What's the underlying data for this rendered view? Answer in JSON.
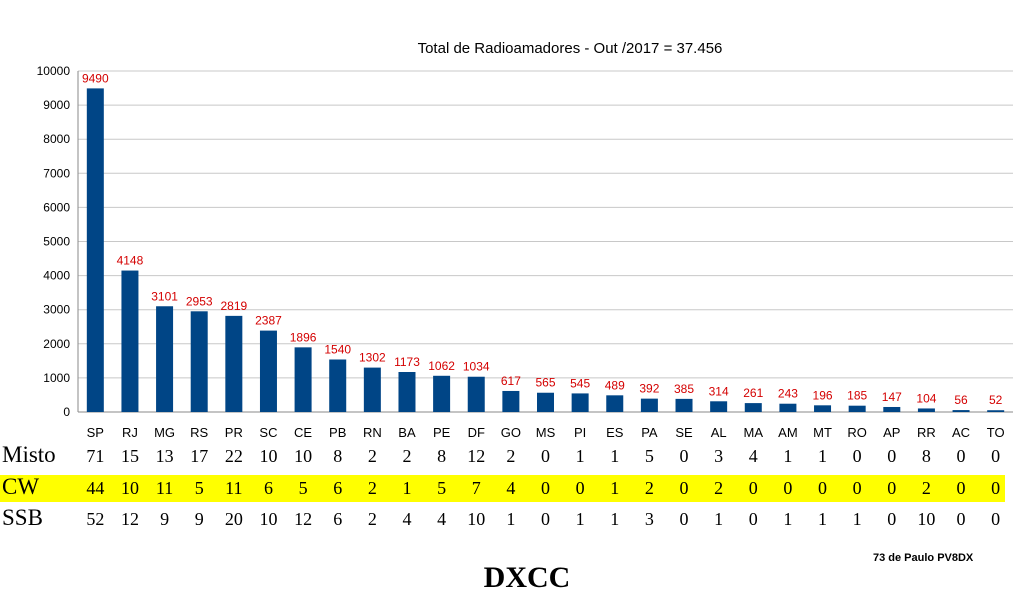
{
  "chart_data": {
    "type": "bar",
    "title": "Total de Radioamadores - Out /2017 = 37.456",
    "categories": [
      "SP",
      "RJ",
      "MG",
      "RS",
      "PR",
      "SC",
      "CE",
      "PB",
      "RN",
      "BA",
      "PE",
      "DF",
      "GO",
      "MS",
      "PI",
      "ES",
      "PA",
      "SE",
      "AL",
      "MA",
      "AM",
      "MT",
      "RO",
      "AP",
      "RR",
      "AC",
      "TO"
    ],
    "values": [
      9490,
      4148,
      3101,
      2953,
      2819,
      2387,
      1896,
      1540,
      1302,
      1173,
      1062,
      1034,
      617,
      565,
      545,
      489,
      392,
      385,
      314,
      261,
      243,
      196,
      185,
      147,
      104,
      56,
      52
    ],
    "ylim": [
      0,
      10000
    ],
    "yticks": [
      0,
      1000,
      2000,
      3000,
      4000,
      5000,
      6000,
      7000,
      8000,
      9000,
      10000
    ],
    "grid": true,
    "bar_color": "#004586",
    "label_color": "#d40000"
  },
  "table": {
    "rows": [
      {
        "label": "Misto",
        "values": [
          71,
          15,
          13,
          17,
          22,
          10,
          10,
          8,
          2,
          2,
          8,
          12,
          2,
          0,
          1,
          1,
          5,
          0,
          3,
          4,
          1,
          1,
          0,
          0,
          8,
          0,
          0
        ],
        "highlight": false
      },
      {
        "label": "CW",
        "values": [
          44,
          10,
          11,
          5,
          11,
          6,
          5,
          6,
          2,
          1,
          5,
          7,
          4,
          0,
          0,
          1,
          2,
          0,
          2,
          0,
          0,
          0,
          0,
          0,
          2,
          0,
          0
        ],
        "highlight": true,
        "highlight_color": "#ffff00"
      },
      {
        "label": "SSB",
        "values": [
          52,
          12,
          9,
          9,
          20,
          10,
          12,
          6,
          2,
          4,
          4,
          10,
          1,
          0,
          1,
          1,
          3,
          0,
          1,
          0,
          1,
          1,
          1,
          0,
          10,
          0,
          0
        ],
        "highlight": false
      }
    ]
  },
  "credit": "73 de Paulo PV8DX",
  "footer": "DXCC"
}
